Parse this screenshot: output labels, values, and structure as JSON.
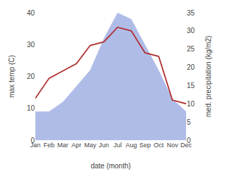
{
  "chart_data": {
    "type": "line",
    "categories": [
      "Jan",
      "Feb",
      "Mar",
      "Apr",
      "May",
      "Jun",
      "Jul",
      "Aug",
      "Sep",
      "Oct",
      "Nov",
      "Dec"
    ],
    "series": [
      {
        "type": "area",
        "color": "#b0bce8",
        "values": [
          9,
          9,
          12,
          17,
          22,
          32,
          40,
          38,
          30,
          22,
          13,
          9
        ]
      },
      {
        "type": "line",
        "color": "#b03030",
        "axis": "y2",
        "values": [
          11.5,
          17,
          19,
          21,
          26,
          27,
          31,
          30,
          24,
          23,
          11,
          10
        ]
      }
    ],
    "xlabel": "date (month)",
    "ylabel": "max temp (C)",
    "y2label": "med. precipitation (kg/m2)",
    "ylim": [
      0,
      40
    ],
    "yticks": [
      0,
      10,
      20,
      30,
      40
    ],
    "y2lim": [
      0,
      35
    ],
    "y2ticks": [
      0,
      5,
      10,
      15,
      20,
      25,
      30,
      35
    ],
    "grid": false
  }
}
